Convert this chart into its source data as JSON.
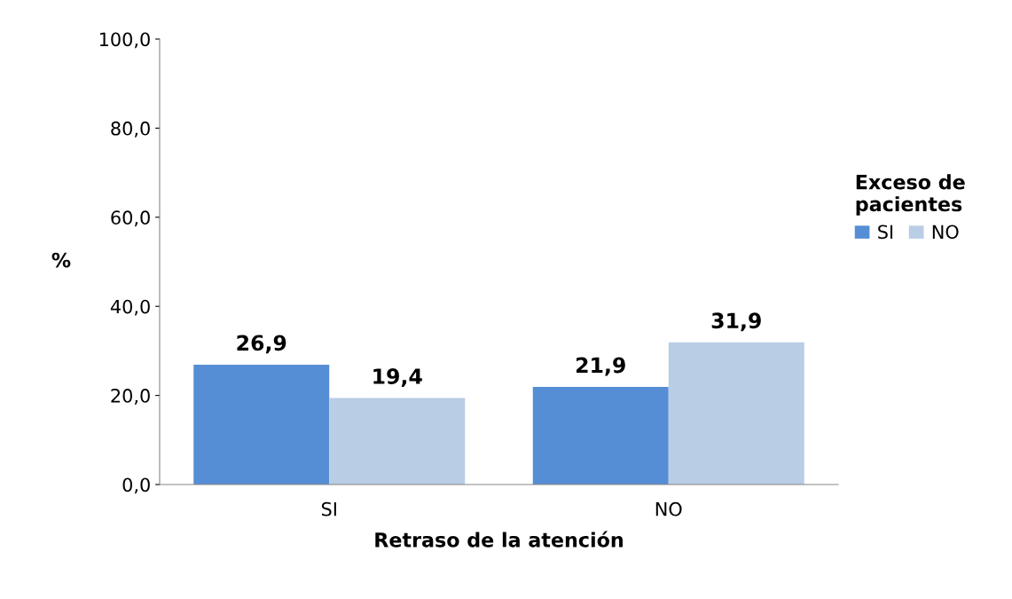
{
  "chart_data": {
    "type": "bar",
    "xlabel": "Retraso de la atención",
    "ylabel": "%",
    "legend_title": "Exceso de\npacientes",
    "categories": [
      "SI",
      "NO"
    ],
    "series": [
      {
        "name": "SI",
        "color": "#558ed5",
        "values": [
          26.9,
          21.9
        ],
        "value_labels": [
          "26,9",
          "21,9"
        ]
      },
      {
        "name": "NO",
        "color": "#b9cde5",
        "values": [
          19.4,
          31.9
        ],
        "value_labels": [
          "19,4",
          "31,9"
        ]
      }
    ],
    "ylim": [
      0,
      100
    ],
    "yticks": [
      {
        "value": 0,
        "label": "0,0"
      },
      {
        "value": 20,
        "label": "20,0"
      },
      {
        "value": 40,
        "label": "40,0"
      },
      {
        "value": 60,
        "label": "60,0"
      },
      {
        "value": 80,
        "label": "80,0"
      },
      {
        "value": 100,
        "label": "100,0"
      }
    ],
    "legend": "right",
    "grid": false
  }
}
